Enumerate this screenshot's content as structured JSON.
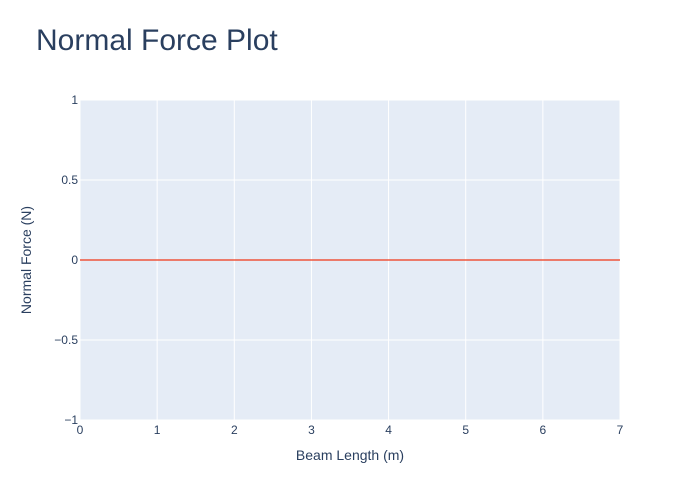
{
  "chart_data": {
    "type": "line",
    "title": "Normal Force Plot",
    "xlabel": "Beam Length (m)",
    "ylabel": "Normal Force (N)",
    "xlim": [
      0,
      7
    ],
    "ylim": [
      -1,
      1
    ],
    "x_ticks": [
      0,
      1,
      2,
      3,
      4,
      5,
      6,
      7
    ],
    "x_tick_labels": [
      "0",
      "1",
      "2",
      "3",
      "4",
      "5",
      "6",
      "7"
    ],
    "y_ticks": [
      -1,
      -0.5,
      0,
      0.5,
      1
    ],
    "y_tick_labels": [
      "−1",
      "−0.5",
      "0",
      "0.5",
      "1"
    ],
    "grid": true,
    "series": [
      {
        "x": [
          0,
          7
        ],
        "y": [
          0,
          0
        ],
        "color": "#ef553b"
      }
    ],
    "colors": {
      "plot_bg": "#e5ecf6",
      "grid": "#ffffff",
      "text": "#2a3f5f"
    }
  }
}
